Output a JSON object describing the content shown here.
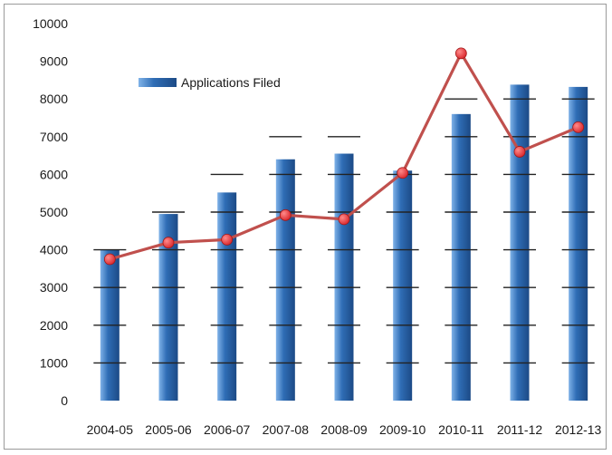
{
  "chart_data": {
    "type": "bar",
    "categories": [
      "2004-05",
      "2005-06",
      "2006-07",
      "2007-08",
      "2008-09",
      "2009-10",
      "2010-11",
      "2011-12",
      "2012-13"
    ],
    "series": [
      {
        "name": "Applications Filed",
        "type": "bar",
        "values": [
          4000,
          4950,
          5520,
          6400,
          6550,
          6100,
          7600,
          8380,
          8320
        ]
      },
      {
        "type": "line",
        "values": [
          3750,
          4190,
          4270,
          4920,
          4810,
          6040,
          9210,
          6600,
          7250
        ]
      }
    ],
    "ylim": [
      0,
      10000
    ],
    "yticks": [
      0,
      1000,
      2000,
      3000,
      4000,
      5000,
      6000,
      7000,
      8000,
      9000,
      10000
    ],
    "legend": "top-left",
    "grid": false,
    "colors": {
      "bar": "#2f6db5",
      "bar_light": "#7fb2e8",
      "bar_dark": "#1c4a86",
      "line": "#c0504d",
      "marker": "#d9262b"
    }
  }
}
